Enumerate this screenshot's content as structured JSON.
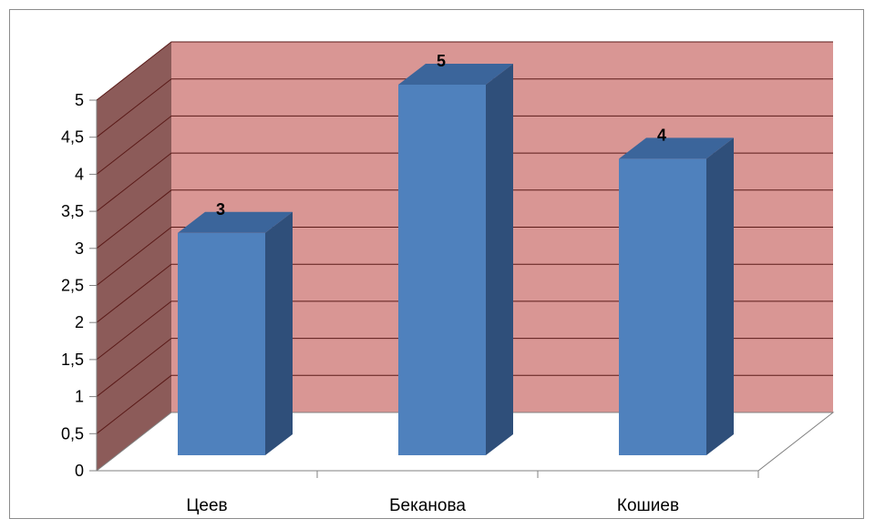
{
  "chart_data": {
    "type": "bar",
    "style": "3d-column",
    "categories": [
      "Цеев",
      "Беканова",
      "Кошиев"
    ],
    "values": [
      3,
      5,
      4
    ],
    "data_labels": [
      "3",
      "5",
      "4"
    ],
    "y_ticks": [
      "0",
      "0,5",
      "1",
      "1,5",
      "2",
      "2,5",
      "3",
      "3,5",
      "4",
      "4,5",
      "5"
    ],
    "ylim": [
      0,
      5
    ],
    "y_step": 0.5,
    "grid": true,
    "legend": "none",
    "colors": {
      "back_wall": "#d99694",
      "side_wall": "#8c5b59",
      "gridline": "#5a1a18",
      "bar_front": "#4f81bd",
      "bar_side": "#2f4f7a",
      "bar_top": "#3b659b",
      "axis": "#808080"
    }
  }
}
